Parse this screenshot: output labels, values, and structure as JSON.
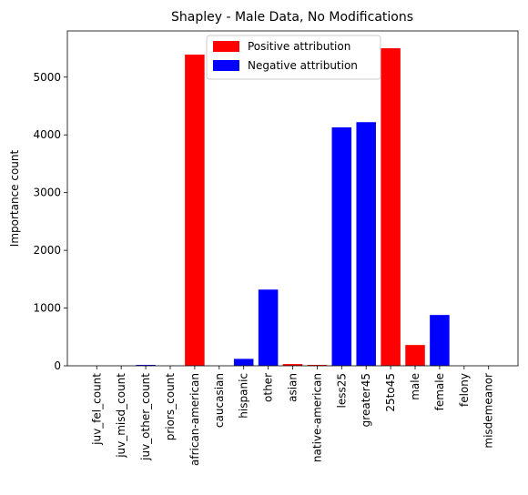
{
  "chart_data": {
    "type": "bar",
    "title": "Shapley - Male Data, No Modifications",
    "xlabel": "",
    "ylabel": "Importance count",
    "ylim": [
      0,
      5800
    ],
    "yticks": [
      0,
      1000,
      2000,
      3000,
      4000,
      5000
    ],
    "categories": [
      "juv_fel_count",
      "juv_misd_count",
      "juv_other_count",
      "priors_count",
      "african-american",
      "caucasian",
      "hispanic",
      "other",
      "asian",
      "native-american",
      "less25",
      "greater45",
      "25to45",
      "male",
      "female",
      "felony",
      "misdemeanor"
    ],
    "values": [
      0,
      0,
      15,
      0,
      5390,
      0,
      120,
      1320,
      30,
      15,
      4130,
      4220,
      5500,
      360,
      880,
      0,
      0
    ],
    "bar_colors": [
      "#ff0000",
      "#0000ff",
      "#0000ff",
      "#0000ff",
      "#ff0000",
      "#0000ff",
      "#0000ff",
      "#0000ff",
      "#ff0000",
      "#ff0000",
      "#0000ff",
      "#0000ff",
      "#ff0000",
      "#ff0000",
      "#0000ff",
      "#ff0000",
      "#0000ff"
    ],
    "legend": {
      "placement": "top-center",
      "entries": [
        {
          "label": "Positive attribution",
          "color": "#ff0000"
        },
        {
          "label": "Negative attribution",
          "color": "#0000ff"
        }
      ]
    },
    "grid": false
  }
}
